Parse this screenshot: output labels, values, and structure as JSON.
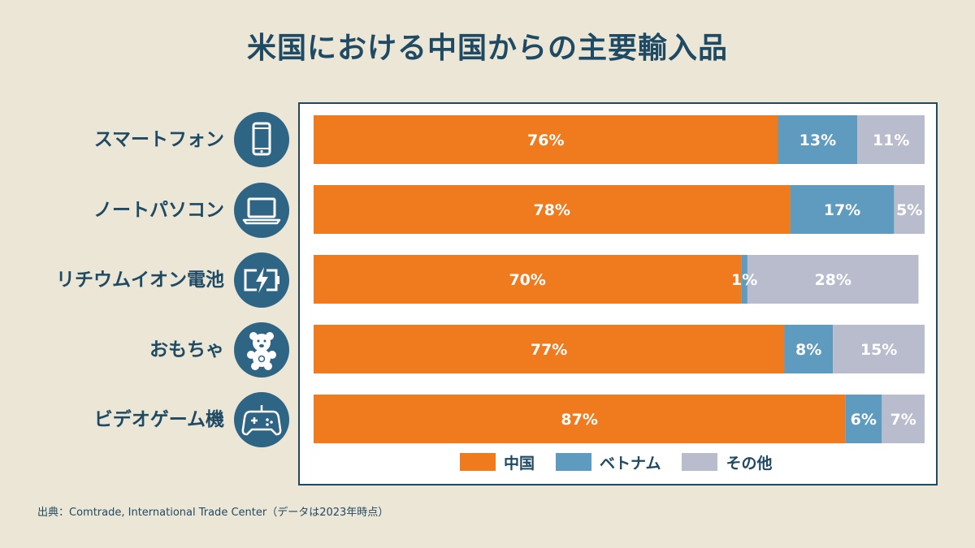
{
  "title": "米国における中国からの主要輸入品",
  "source": "出典：Comtrade, International Trade Center（データは2023年時点）",
  "colors": {
    "china": "#f07a1e",
    "vietnam": "#5f9bbf",
    "other": "#b9bccd",
    "icon_bg": "#2e6584"
  },
  "chart_data": {
    "type": "bar",
    "stacked": true,
    "orientation": "horizontal",
    "unit": "%",
    "categories": [
      "スマートフォン",
      "ノートパソコン",
      "リチウムイオン電池",
      "おもちゃ",
      "ビデオゲーム機"
    ],
    "icons": [
      "smartphone-icon",
      "laptop-icon",
      "battery-icon",
      "teddy-bear-icon",
      "gamepad-icon"
    ],
    "series": [
      {
        "name": "中国",
        "values": [
          76,
          78,
          70,
          77,
          87
        ],
        "color": "#f07a1e"
      },
      {
        "name": "ベトナム",
        "values": [
          13,
          17,
          1,
          8,
          6
        ],
        "color": "#5f9bbf"
      },
      {
        "name": "その他",
        "values": [
          11,
          5,
          28,
          15,
          7
        ],
        "color": "#b9bccd"
      }
    ],
    "data_labels": [
      [
        "76%",
        "13%",
        "11%"
      ],
      [
        "78%",
        "17%",
        "5%"
      ],
      [
        "70%",
        "1%",
        "28%"
      ],
      [
        "77%",
        "8%",
        "15%"
      ],
      [
        "87%",
        "6%",
        "7%"
      ]
    ],
    "xlim": [
      0,
      100
    ],
    "legend": "bottom"
  }
}
